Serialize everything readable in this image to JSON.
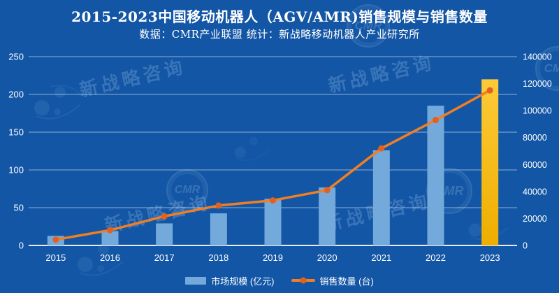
{
  "header": {
    "title": "2015-2023中国移动机器人（AGV/AMR)销售规模与销售数量",
    "subtitle": "数据：CMR产业联盟 统计：新战略移动机器人产业研究所"
  },
  "watermark": {
    "text": "新战略咨询",
    "badge": "CMR"
  },
  "colors": {
    "bg": "#1356a5",
    "bar_color": "#74a9db",
    "gold_top": "#fdca38",
    "gold_bottom": "#eeae00",
    "line_color": "#f07f24",
    "marker_color": "#e2611f",
    "grid_color": "rgba(225,232,241,0.6)",
    "axis_line_color": "#e7edf5",
    "tick_label_color": "#ffffff"
  },
  "chart_data": {
    "type": "bar",
    "subtype": "bar-line-combo",
    "title": "2015-2023中国移动机器人（AGV/AMR)销售规模与销售数量",
    "categories": [
      "2015",
      "2016",
      "2017",
      "2018",
      "2019",
      "2020",
      "2021",
      "2022",
      "2023"
    ],
    "series": [
      {
        "name": "市场规模 (亿元)",
        "type": "bar",
        "axis": "left",
        "values": [
          12.7,
          19,
          29.2,
          42.5,
          61.8,
          76.8,
          126,
          185,
          220
        ],
        "color": "#74a9db",
        "highlight_last_bar": true
      },
      {
        "name": "销售数量 (台)",
        "type": "line",
        "axis": "right",
        "values": [
          4300,
          11300,
          21600,
          29600,
          33400,
          41000,
          72000,
          93000,
          115000
        ],
        "color": "#f07f24",
        "marker_color": "#e2611f"
      }
    ],
    "left_axis": {
      "min": 0,
      "max": 250,
      "ticks": [
        0,
        50,
        100,
        150,
        200,
        250
      ]
    },
    "right_axis": {
      "min": 0,
      "max": 140000,
      "ticks": [
        0,
        20000,
        40000,
        60000,
        80000,
        100000,
        120000,
        140000
      ]
    },
    "grid": true,
    "legend_position": "bottom"
  }
}
